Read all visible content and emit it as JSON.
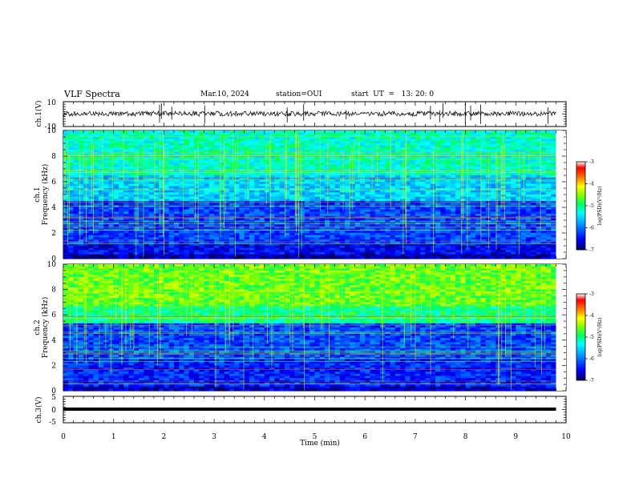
{
  "header": {
    "title": "VLF Spectra",
    "date": "Mar.10, 2024",
    "station": "station=OUI",
    "start": "start  UT  =   13: 20: 0"
  },
  "chart_data": [
    {
      "type": "line",
      "panel": "ch1-waveform",
      "ylabel": "ch.1(V)",
      "ylim": [
        -10,
        10
      ],
      "yticks": [
        "10",
        "-10"
      ],
      "xlim": [
        0,
        10
      ]
    },
    {
      "type": "heatmap",
      "panel": "ch1-spectrogram",
      "ylabel": "ch.1\nFrequency (kHz)",
      "ylabel_line1": "ch.1",
      "ylabel_line2": "Frequency (kHz)",
      "ylim": [
        0,
        10
      ],
      "yticks": [
        "0",
        "2",
        "4",
        "6",
        "8",
        "10"
      ],
      "xlim": [
        0,
        9.8
      ],
      "colorbar": {
        "label": "log(PSD)(V²/Hz)",
        "range": [
          -7,
          -3
        ],
        "ticks": [
          "-3",
          "-4",
          "-5",
          "-6",
          "-7"
        ],
        "colormap": [
          "#000080",
          "#0000ff",
          "#00a0ff",
          "#00ffff",
          "#00ff80",
          "#80ff00",
          "#ffff00",
          "#ff8000",
          "#ff0000",
          "#ffffff"
        ]
      }
    },
    {
      "type": "heatmap",
      "panel": "ch2-spectrogram",
      "ylabel": "ch.2\nFrequency (kHz)",
      "ylabel_line1": "ch.2",
      "ylabel_line2": "Frequency (kHz)",
      "ylim": [
        0,
        10
      ],
      "yticks": [
        "0",
        "2",
        "4",
        "6",
        "8",
        "10"
      ],
      "xlim": [
        0,
        9.8
      ],
      "colorbar": {
        "label": "log(PSD)(V²/Hz)",
        "range": [
          -7,
          -3
        ],
        "ticks": [
          "-3",
          "-4",
          "-5",
          "-6",
          "-7"
        ]
      }
    },
    {
      "type": "line",
      "panel": "ch3-waveform",
      "ylabel": "ch.3(V)",
      "ylim": [
        -5,
        5
      ],
      "yticks": [
        "5",
        "0",
        "-5"
      ],
      "xlim": [
        0,
        10
      ]
    }
  ],
  "xaxis": {
    "label": "Time (min)",
    "ticks": [
      "0",
      "1",
      "2",
      "3",
      "4",
      "5",
      "6",
      "7",
      "8",
      "9",
      "10"
    ]
  }
}
